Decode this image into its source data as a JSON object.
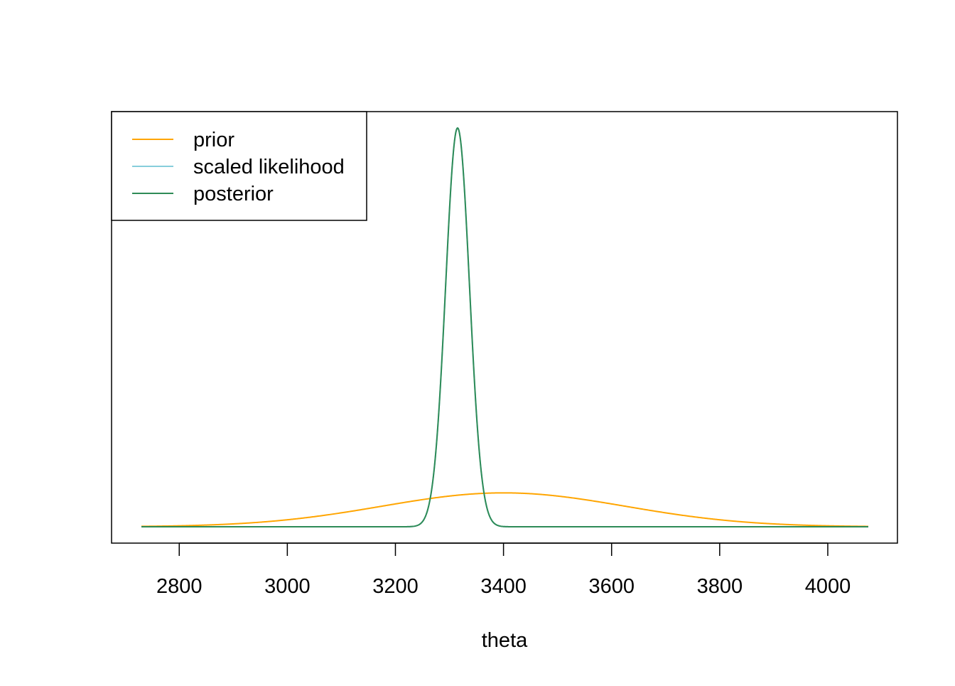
{
  "chart_data": {
    "type": "line",
    "title": "",
    "xlabel": "theta",
    "ylabel": "",
    "xlim": [
      2730,
      4075
    ],
    "ylim": [
      0,
      1
    ],
    "x_ticks": [
      2800,
      3000,
      3200,
      3400,
      3600,
      3800,
      4000
    ],
    "x_tick_labels": [
      "2800",
      "3000",
      "3200",
      "3400",
      "3600",
      "3800",
      "4000"
    ],
    "y_axis_shown": false,
    "grid": false,
    "legend_position": "top-left",
    "series": [
      {
        "name": "prior",
        "color": "#FFA500",
        "distribution": "normal",
        "mean": 3400,
        "sd": 225,
        "peak": 0.085
      },
      {
        "name": "scaled likelihood",
        "color": "#87CEDB",
        "distribution": "normal",
        "mean": 3315,
        "sd": 22,
        "peak": 1.0
      },
      {
        "name": "posterior",
        "color": "#2E8B57",
        "distribution": "normal",
        "mean": 3315,
        "sd": 22,
        "peak": 1.0
      }
    ]
  }
}
